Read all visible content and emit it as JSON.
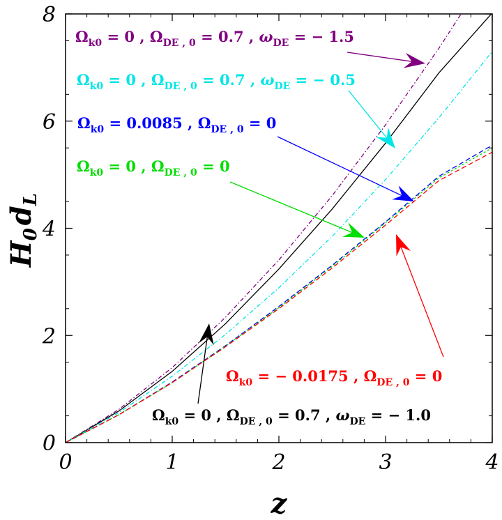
{
  "chart_data": {
    "type": "line",
    "xlabel": "z",
    "ylabel_main": "H",
    "ylabel_sub0": "0",
    "ylabel_d": "d",
    "ylabel_subL": "L",
    "xlim": [
      0,
      4
    ],
    "ylim": [
      0,
      8
    ],
    "xticks": [
      0,
      1,
      2,
      3,
      4
    ],
    "yticks": [
      0,
      2,
      4,
      6,
      8
    ],
    "grid": false,
    "series": [
      {
        "key": "flat_w15",
        "color": "#800080",
        "dash": "6,3,1.5,3",
        "x": [
          0,
          0.5,
          1,
          1.5,
          2,
          2.5,
          3,
          3.5,
          4
        ],
        "y": [
          0,
          0.62,
          1.4,
          2.34,
          3.41,
          4.61,
          5.93,
          7.36,
          8.9
        ]
      },
      {
        "key": "flat_w10",
        "color": "#000000",
        "dash": "",
        "x": [
          0,
          0.5,
          1,
          1.5,
          2,
          2.5,
          3,
          3.5,
          4
        ],
        "y": [
          0,
          0.59,
          1.33,
          2.22,
          3.24,
          4.36,
          5.59,
          6.9,
          8.02
        ]
      },
      {
        "key": "flat_w05",
        "color": "#00e5e5",
        "dash": "6,3,1.5,3",
        "x": [
          0,
          0.5,
          1,
          1.5,
          2,
          2.5,
          3,
          3.5,
          4
        ],
        "y": [
          0,
          0.56,
          1.24,
          2.02,
          2.89,
          3.85,
          4.91,
          6.06,
          7.3
        ]
      },
      {
        "key": "open_matter",
        "color": "#0000ff",
        "dash": "7,4",
        "x": [
          0,
          0.5,
          1,
          1.5,
          2,
          2.5,
          3,
          3.5,
          4
        ],
        "y": [
          0,
          0.52,
          1.13,
          1.81,
          2.54,
          3.31,
          4.12,
          4.97,
          5.55
        ]
      },
      {
        "key": "flat_matter",
        "color": "#00dd00",
        "dash": "3,3",
        "x": [
          0,
          0.5,
          1,
          1.5,
          2,
          2.5,
          3,
          3.5,
          4
        ],
        "y": [
          0,
          0.52,
          1.12,
          1.8,
          2.52,
          3.29,
          4.1,
          4.94,
          5.5
        ]
      },
      {
        "key": "closed_matter",
        "color": "#ff0000",
        "dash": "7,4",
        "x": [
          0,
          0.5,
          1,
          1.5,
          2,
          2.5,
          3,
          3.5,
          4
        ],
        "y": [
          0,
          0.52,
          1.12,
          1.79,
          2.5,
          3.26,
          4.06,
          4.89,
          5.42
        ]
      }
    ],
    "annotations": [
      {
        "key": "flat_w15",
        "color": "#800080",
        "parts": [
          [
            "Ω",
            ""
          ],
          [
            "k0",
            "sub"
          ],
          [
            " = 0 ,  ",
            ""
          ],
          [
            "Ω",
            ""
          ],
          [
            "DE , 0",
            "sub"
          ],
          [
            " = 0.7 ,  ",
            ""
          ],
          [
            "ω",
            "it"
          ],
          [
            "DE",
            "sub"
          ],
          [
            " = − 1.5",
            ""
          ]
        ]
      },
      {
        "key": "flat_w05",
        "color": "#00e5e5",
        "parts": [
          [
            "Ω",
            ""
          ],
          [
            "k0",
            "sub"
          ],
          [
            " = 0 ,  ",
            ""
          ],
          [
            "Ω",
            ""
          ],
          [
            "DE , 0",
            "sub"
          ],
          [
            " = 0.7 ,  ",
            ""
          ],
          [
            "ω",
            "it"
          ],
          [
            "DE",
            "sub"
          ],
          [
            " = − 0.5",
            ""
          ]
        ]
      },
      {
        "key": "open_matter",
        "color": "#0000ff",
        "parts": [
          [
            "Ω",
            ""
          ],
          [
            "k0",
            "sub"
          ],
          [
            " = 0.0085 ,  ",
            ""
          ],
          [
            "Ω",
            ""
          ],
          [
            "DE , 0",
            "sub"
          ],
          [
            " = 0",
            ""
          ]
        ]
      },
      {
        "key": "flat_matter",
        "color": "#00dd00",
        "parts": [
          [
            "Ω",
            ""
          ],
          [
            "k0",
            "sub"
          ],
          [
            " = 0 ,  ",
            ""
          ],
          [
            "Ω",
            ""
          ],
          [
            "DE , 0",
            "sub"
          ],
          [
            " = 0",
            ""
          ]
        ]
      },
      {
        "key": "closed_matter",
        "color": "#ff0000",
        "parts": [
          [
            "Ω",
            ""
          ],
          [
            "k0",
            "sub"
          ],
          [
            " = − 0.0175 ,  ",
            ""
          ],
          [
            "Ω",
            ""
          ],
          [
            "DE , 0",
            "sub"
          ],
          [
            " = 0",
            ""
          ]
        ]
      },
      {
        "key": "flat_w10",
        "color": "#000000",
        "parts": [
          [
            "Ω",
            ""
          ],
          [
            "k0",
            "sub"
          ],
          [
            " = 0 ,  ",
            ""
          ],
          [
            "Ω",
            ""
          ],
          [
            "DE , 0",
            "sub"
          ],
          [
            " = 0.7 ,  ",
            ""
          ],
          [
            "ω",
            "it"
          ],
          [
            "DE",
            "sub"
          ],
          [
            " = − 1.0",
            ""
          ]
        ]
      }
    ]
  }
}
